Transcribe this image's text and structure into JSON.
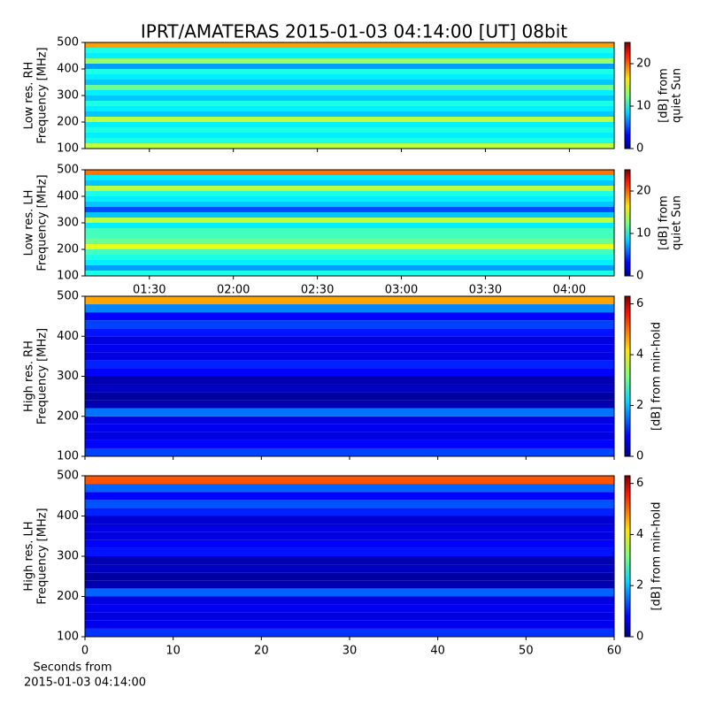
{
  "title": "IPRT/AMATERAS 2015-01-03 04:14:00 [UT]   08bit",
  "x_label": [
    "Seconds from",
    "2015-01-03 04:14:00"
  ],
  "chart_data": [
    {
      "type": "heatmap",
      "y_label": [
        "Low res. RH",
        "Frequency [MHz]"
      ],
      "ylim": [
        100,
        500
      ],
      "yticks": [
        100,
        200,
        300,
        400,
        500
      ],
      "frequency_bins": [
        100,
        120,
        140,
        160,
        180,
        200,
        220,
        240,
        260,
        280,
        300,
        320,
        340,
        360,
        380,
        400,
        420,
        440,
        460,
        480,
        500
      ],
      "values": [
        14,
        10,
        9,
        10,
        9,
        14,
        8,
        9,
        10,
        8,
        9,
        12,
        8,
        9,
        10,
        7,
        13,
        9,
        10,
        18
      ],
      "colorbar": {
        "label": [
          "[dB] from",
          "quiet Sun"
        ],
        "lim": [
          0,
          25
        ],
        "ticks": [
          0,
          10,
          20
        ]
      }
    },
    {
      "type": "heatmap",
      "y_label": [
        "Low res. LH",
        "Frequency [MHz]"
      ],
      "ylim": [
        100,
        500
      ],
      "yticks": [
        100,
        200,
        300,
        400,
        500
      ],
      "xlim": [
        "01:07",
        "04:16"
      ],
      "xticks": [
        "01:30",
        "02:00",
        "02:30",
        "03:00",
        "03:30",
        "04:00"
      ],
      "frequency_bins": [
        100,
        120,
        140,
        160,
        180,
        200,
        220,
        240,
        260,
        280,
        300,
        320,
        340,
        360,
        380,
        400,
        420,
        440,
        460,
        480,
        500
      ],
      "values": [
        10,
        7,
        9,
        10,
        11,
        15,
        12,
        11,
        11,
        9,
        14,
        8,
        5,
        8,
        9,
        10,
        14,
        8,
        9,
        19
      ],
      "colorbar": {
        "label": [
          "[dB] from",
          "quiet Sun"
        ],
        "lim": [
          0,
          25
        ],
        "ticks": [
          0,
          10,
          20
        ]
      }
    },
    {
      "type": "heatmap",
      "y_label": [
        "High res. RH",
        "Frequency [MHz]"
      ],
      "ylim": [
        100,
        500
      ],
      "yticks": [
        100,
        200,
        300,
        400,
        500
      ],
      "frequency_bins": [
        100,
        120,
        140,
        160,
        180,
        200,
        220,
        240,
        260,
        280,
        300,
        320,
        340,
        360,
        380,
        400,
        420,
        440,
        460,
        480,
        500
      ],
      "values": [
        1.2,
        0.8,
        0.6,
        0.7,
        0.6,
        1.5,
        0.3,
        0.2,
        0.4,
        0.3,
        0.8,
        1.0,
        0.6,
        0.7,
        0.6,
        0.9,
        1.2,
        0.8,
        1.6,
        4.5
      ],
      "colorbar": {
        "label": [
          "[dB] from min-hold"
        ],
        "lim": [
          0,
          6.3
        ],
        "ticks": [
          0,
          2,
          4,
          6
        ]
      }
    },
    {
      "type": "heatmap",
      "y_label": [
        "High res. LH",
        "Frequency [MHz]"
      ],
      "ylim": [
        100,
        500
      ],
      "yticks": [
        100,
        200,
        300,
        400,
        500
      ],
      "xlim": [
        0,
        60
      ],
      "xticks": [
        0,
        10,
        20,
        30,
        40,
        50,
        60
      ],
      "frequency_bins": [
        100,
        120,
        140,
        160,
        180,
        200,
        220,
        240,
        260,
        280,
        300,
        320,
        340,
        360,
        380,
        400,
        420,
        440,
        460,
        480,
        500
      ],
      "values": [
        1.1,
        0.7,
        0.6,
        0.7,
        0.6,
        1.4,
        0.3,
        0.2,
        0.4,
        0.3,
        0.9,
        0.8,
        0.6,
        0.6,
        0.5,
        1.0,
        1.3,
        0.8,
        1.4,
        5.0
      ],
      "colorbar": {
        "label": [
          "[dB] from min-hold"
        ],
        "lim": [
          0,
          6.3
        ],
        "ticks": [
          0,
          2,
          4,
          6
        ]
      }
    }
  ]
}
